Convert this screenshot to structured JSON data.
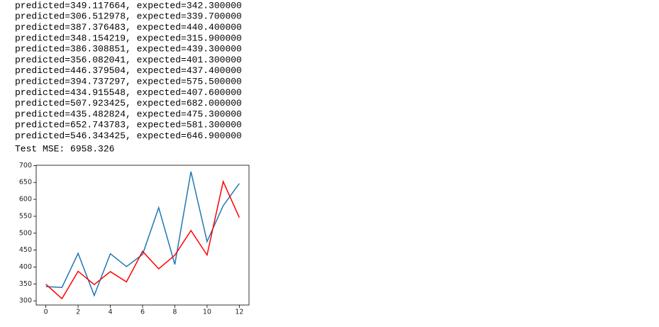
{
  "output_lines": [
    "predicted=349.117664, expected=342.300000",
    "predicted=306.512978, expected=339.700000",
    "predicted=387.376483, expected=440.400000",
    "predicted=348.154219, expected=315.900000",
    "predicted=386.308851, expected=439.300000",
    "predicted=356.082041, expected=401.300000",
    "predicted=446.379504, expected=437.400000",
    "predicted=394.737297, expected=575.500000",
    "predicted=434.915548, expected=407.600000",
    "predicted=507.923425, expected=682.000000",
    "predicted=435.482824, expected=475.300000",
    "predicted=652.743783, expected=581.300000",
    "predicted=546.343425, expected=646.900000",
    "Test MSE: 6958.326"
  ],
  "chart_data": {
    "type": "line",
    "x": [
      0,
      1,
      2,
      3,
      4,
      5,
      6,
      7,
      8,
      9,
      10,
      11,
      12
    ],
    "series": [
      {
        "color": "#1f77b4",
        "values": [
          342.3,
          339.7,
          440.4,
          315.9,
          439.3,
          401.3,
          437.4,
          575.5,
          407.6,
          682.0,
          475.3,
          581.3,
          646.9
        ]
      },
      {
        "color": "#ff0000",
        "values": [
          349.117664,
          306.512978,
          387.376483,
          348.154219,
          386.308851,
          356.082041,
          446.379504,
          394.737297,
          434.915548,
          507.923425,
          435.482824,
          652.743783,
          546.343425
        ]
      }
    ],
    "xlim": [
      -0.6,
      12.6
    ],
    "xticks": [
      0,
      2,
      4,
      6,
      8,
      10,
      12
    ],
    "ylim": [
      287.7,
      700.8
    ],
    "yticks": [
      300,
      350,
      400,
      450,
      500,
      550,
      600,
      650,
      700
    ]
  }
}
